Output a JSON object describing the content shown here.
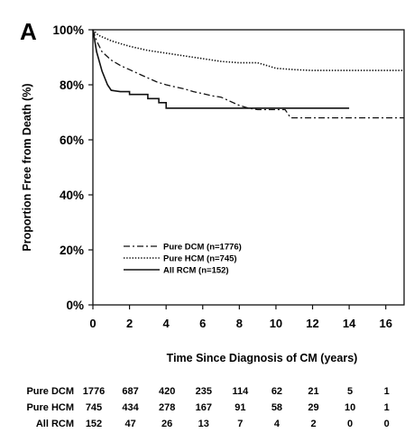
{
  "panel_label": "A",
  "chart_data": {
    "type": "line",
    "title": "",
    "xlabel": "Time Since Diagnosis of CM (years)",
    "ylabel": "Proportion Free from Death (%)",
    "xlim": [
      0,
      17
    ],
    "ylim": [
      0,
      100
    ],
    "x_ticks": [
      0,
      2,
      4,
      6,
      8,
      10,
      12,
      14,
      16
    ],
    "y_ticks": [
      "0%",
      "20%",
      "40%",
      "60%",
      "80%",
      "100%"
    ],
    "grid": false,
    "legend_position": "lower-left",
    "series": [
      {
        "name": "Pure DCM (n=1776)",
        "style": "dashdot",
        "points": [
          [
            0,
            100
          ],
          [
            0.2,
            96
          ],
          [
            0.5,
            92
          ],
          [
            1,
            89
          ],
          [
            1.5,
            87
          ],
          [
            2,
            85.5
          ],
          [
            2.5,
            84
          ],
          [
            3,
            82.5
          ],
          [
            3.5,
            81
          ],
          [
            4,
            80
          ],
          [
            4.5,
            79.2
          ],
          [
            5,
            78.5
          ],
          [
            5.5,
            77.5
          ],
          [
            6,
            76.8
          ],
          [
            6.5,
            76
          ],
          [
            7,
            75.5
          ],
          [
            7.5,
            74
          ],
          [
            8,
            72.5
          ],
          [
            8.5,
            71.5
          ],
          [
            9,
            71
          ],
          [
            10,
            71
          ],
          [
            10.5,
            71
          ],
          [
            10.8,
            68
          ],
          [
            17,
            68
          ]
        ]
      },
      {
        "name": "Pure HCM (n=745)",
        "style": "dotted",
        "points": [
          [
            0,
            100
          ],
          [
            0.3,
            98
          ],
          [
            1,
            96
          ],
          [
            1.5,
            95
          ],
          [
            2,
            94
          ],
          [
            3,
            92.5
          ],
          [
            4,
            91.5
          ],
          [
            5,
            90.5
          ],
          [
            6,
            89.5
          ],
          [
            7,
            88.5
          ],
          [
            8,
            88
          ],
          [
            9,
            88
          ],
          [
            9.5,
            87
          ],
          [
            10,
            86
          ],
          [
            11,
            85.5
          ],
          [
            12,
            85.2
          ],
          [
            13,
            85.2
          ],
          [
            17,
            85.2
          ]
        ]
      },
      {
        "name": "All RCM (n=152)",
        "style": "solid",
        "points": [
          [
            0,
            100
          ],
          [
            0.2,
            92
          ],
          [
            0.5,
            85
          ],
          [
            0.8,
            80
          ],
          [
            1,
            78
          ],
          [
            1.5,
            77.5
          ],
          [
            2,
            77.5
          ],
          [
            2,
            76.5
          ],
          [
            3,
            76.5
          ],
          [
            3,
            75
          ],
          [
            3.6,
            75
          ],
          [
            3.6,
            73.5
          ],
          [
            4,
            73.5
          ],
          [
            4,
            71.5
          ],
          [
            10,
            71.5
          ],
          [
            10,
            71.5
          ],
          [
            14,
            71.5
          ]
        ]
      }
    ],
    "risk_table": {
      "columns": [
        0,
        2,
        4,
        6,
        8,
        10,
        12,
        14,
        16
      ],
      "rows": [
        {
          "label": "Pure DCM",
          "values": [
            1776,
            687,
            420,
            235,
            114,
            62,
            21,
            5,
            1
          ]
        },
        {
          "label": "Pure HCM",
          "values": [
            745,
            434,
            278,
            167,
            91,
            58,
            29,
            10,
            1
          ]
        },
        {
          "label": "All RCM",
          "values": [
            152,
            47,
            26,
            13,
            7,
            4,
            2,
            0,
            0
          ]
        }
      ]
    }
  }
}
